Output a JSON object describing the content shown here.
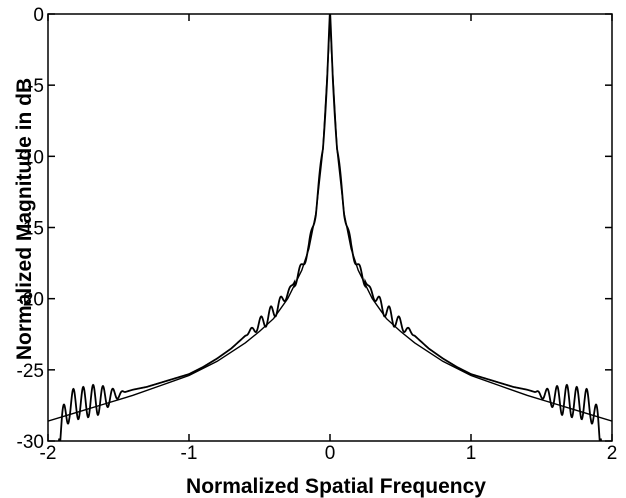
{
  "chart_data": {
    "type": "line",
    "title": "",
    "xlabel": "Normalized Spatial Frequency",
    "ylabel": "Normalized Magnitude in dB",
    "xlim": [
      -2,
      2
    ],
    "ylim": [
      -30,
      0
    ],
    "xticks": [
      -2,
      -1,
      0,
      1,
      2
    ],
    "yticks": [
      0,
      -5,
      -10,
      -15,
      -20,
      -25,
      -30
    ],
    "xtick_labels": [
      "-2",
      "-1",
      "0",
      "1",
      "2"
    ],
    "ytick_labels": [
      "0",
      "-5",
      "-10",
      "-15",
      "-20",
      "-25",
      "-30"
    ],
    "grid": false,
    "legend": "none",
    "series": [
      {
        "style": "smooth",
        "x": [
          -2.0,
          -1.8,
          -1.6,
          -1.4,
          -1.2,
          -1.0,
          -0.8,
          -0.6,
          -0.5,
          -0.4,
          -0.3,
          -0.2,
          -0.15,
          -0.1,
          -0.05,
          -0.03,
          -0.01,
          0.0,
          0.01,
          0.03,
          0.05,
          0.1,
          0.15,
          0.2,
          0.3,
          0.4,
          0.5,
          0.6,
          0.8,
          1.0,
          1.2,
          1.4,
          1.6,
          1.8,
          2.0
        ],
        "y": [
          -28.6,
          -28.0,
          -27.4,
          -26.8,
          -26.1,
          -25.4,
          -24.4,
          -23.1,
          -22.3,
          -21.4,
          -20.0,
          -18.0,
          -16.5,
          -14.0,
          -9.5,
          -6.0,
          -2.5,
          0.0,
          -2.5,
          -6.0,
          -9.5,
          -14.0,
          -16.5,
          -18.0,
          -20.0,
          -21.4,
          -22.3,
          -23.1,
          -24.4,
          -25.4,
          -26.1,
          -26.8,
          -27.4,
          -28.0,
          -28.6
        ]
      },
      {
        "style": "oscillating",
        "x": [
          -2.0,
          -1.9,
          -1.8,
          -1.7,
          -1.6,
          -1.5,
          -1.4,
          -1.3,
          -1.2,
          -1.1,
          -1.0,
          -0.9,
          -0.8,
          -0.7,
          -0.6,
          -0.5,
          -0.45,
          -0.4,
          -0.35,
          -0.3,
          -0.25,
          -0.2,
          -0.15,
          -0.1,
          -0.05,
          -0.02,
          0.0,
          0.02,
          0.05,
          0.1,
          0.15,
          0.2,
          0.25,
          0.3,
          0.35,
          0.4,
          0.45,
          0.5,
          0.6,
          0.7,
          0.8,
          0.9,
          1.0,
          1.1,
          1.2,
          1.3,
          1.4,
          1.5,
          1.6,
          1.7,
          1.8,
          1.9,
          2.0
        ],
        "y": [
          -30.0,
          -27.6,
          -27.4,
          -27.2,
          -27.0,
          -26.7,
          -26.4,
          -26.2,
          -25.9,
          -25.6,
          -25.3,
          -24.8,
          -24.2,
          -23.5,
          -22.6,
          -21.8,
          -21.4,
          -20.9,
          -20.3,
          -19.6,
          -18.8,
          -17.8,
          -16.4,
          -13.8,
          -9.4,
          -4.5,
          0.0,
          -4.5,
          -9.4,
          -13.8,
          -16.4,
          -17.8,
          -18.8,
          -19.6,
          -20.3,
          -20.9,
          -21.4,
          -21.8,
          -22.6,
          -23.5,
          -24.2,
          -24.8,
          -25.3,
          -25.6,
          -25.9,
          -26.2,
          -26.4,
          -26.7,
          -27.0,
          -27.2,
          -27.4,
          -27.6,
          -30.0
        ]
      }
    ]
  }
}
